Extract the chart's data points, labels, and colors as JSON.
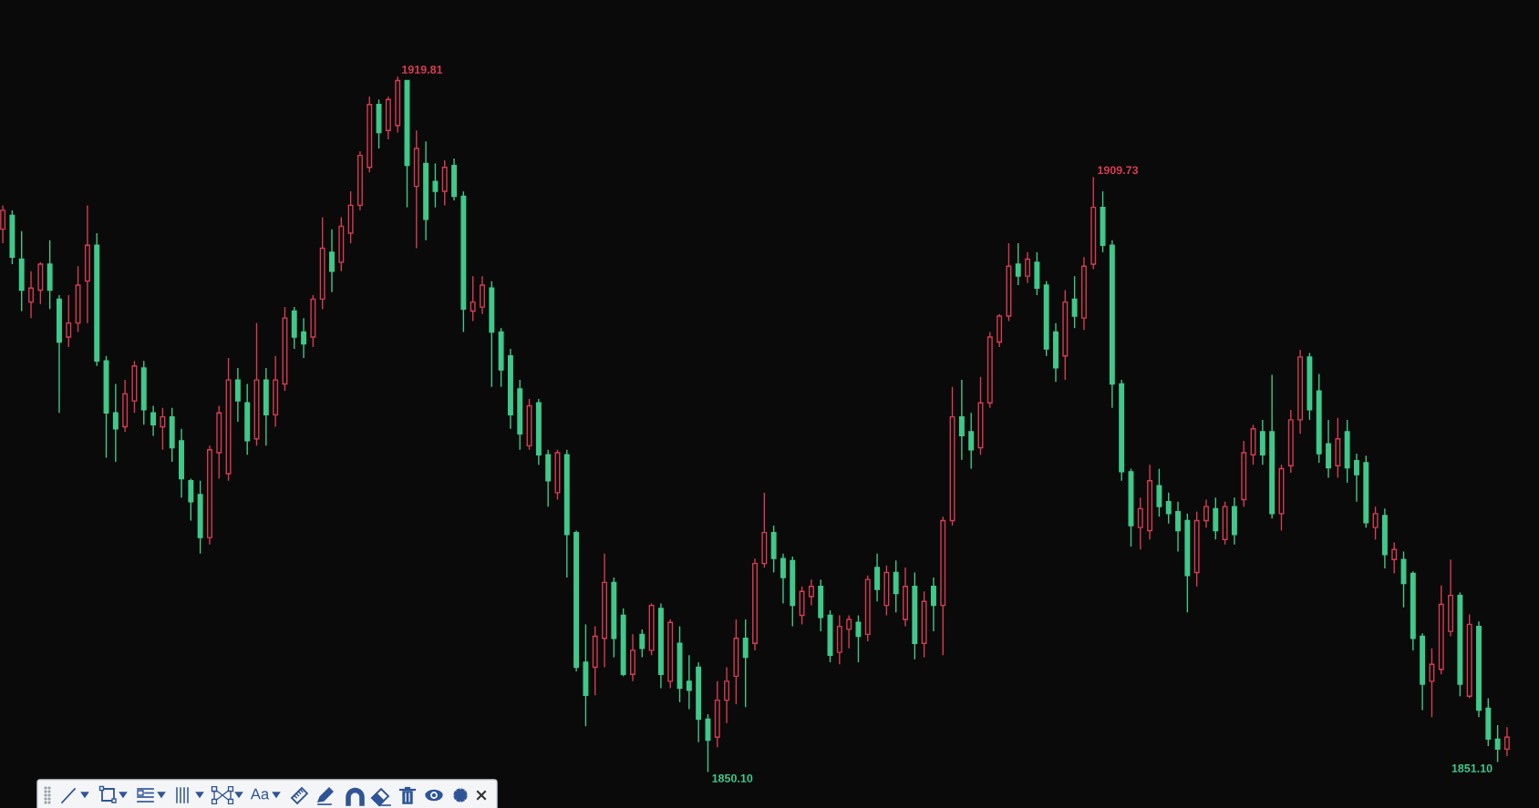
{
  "chart_data": {
    "type": "candlestick",
    "tick_labels": false,
    "categories": [
      null,
      null,
      null,
      null,
      null,
      null,
      null,
      null,
      null,
      null,
      null,
      null,
      null,
      null,
      null,
      null,
      null,
      null,
      null,
      null,
      null,
      null,
      null,
      null,
      null,
      null,
      null,
      null,
      null,
      null,
      null,
      null,
      null,
      null,
      null,
      null,
      null,
      null,
      null,
      null,
      null,
      null,
      null,
      null,
      null,
      null,
      null,
      null,
      null,
      null,
      null,
      null,
      null,
      null,
      null,
      null,
      null,
      null,
      null,
      null,
      null,
      null,
      null,
      null,
      null,
      null,
      null,
      null,
      null,
      null,
      null,
      null,
      null,
      null,
      null,
      null,
      null,
      null,
      null,
      null,
      null,
      null,
      null,
      null,
      null,
      null,
      null,
      null,
      null,
      null,
      null,
      null,
      null,
      null,
      null,
      null,
      null,
      null,
      null,
      null,
      null,
      null,
      null,
      null,
      null,
      null,
      null,
      null,
      null,
      null,
      null,
      null,
      null,
      null,
      null,
      null,
      null,
      null,
      null,
      null,
      null,
      null,
      null,
      null,
      null,
      null,
      null,
      null,
      null,
      null,
      null,
      null,
      null,
      null,
      null,
      null,
      null,
      null,
      null,
      null,
      null,
      null,
      null,
      null,
      null,
      null,
      null,
      null,
      null,
      null,
      null,
      null,
      null,
      null,
      null,
      null,
      null,
      null,
      null,
      null,
      null
    ],
    "ohlc": [
      [
        1904.5,
        1906.9,
        1903.1,
        1906.4
      ],
      [
        1905.9,
        1906.4,
        1901.0,
        1901.7
      ],
      [
        1901.5,
        1904.3,
        1896.3,
        1898.4
      ],
      [
        1897.2,
        1900.3,
        1895.6,
        1898.6
      ],
      [
        1898.4,
        1901.2,
        1897.0,
        1901.0
      ],
      [
        1901.0,
        1903.4,
        1896.5,
        1898.4
      ],
      [
        1897.5,
        1897.9,
        1886.1,
        1893.2
      ],
      [
        1893.7,
        1897.9,
        1892.7,
        1895.1
      ],
      [
        1895.1,
        1900.8,
        1894.2,
        1898.9
      ],
      [
        1899.3,
        1906.9,
        1895.1,
        1902.9
      ],
      [
        1902.9,
        1904.1,
        1890.8,
        1891.3
      ],
      [
        1891.3,
        1891.8,
        1881.6,
        1886.1
      ],
      [
        1886.1,
        1889.0,
        1881.2,
        1884.5
      ],
      [
        1884.7,
        1889.4,
        1884.2,
        1888.0
      ],
      [
        1887.3,
        1891.3,
        1886.1,
        1890.8
      ],
      [
        1890.6,
        1891.3,
        1884.9,
        1886.4
      ],
      [
        1886.1,
        1886.8,
        1883.8,
        1884.9
      ],
      [
        1884.7,
        1886.6,
        1882.4,
        1885.7
      ],
      [
        1885.7,
        1886.6,
        1881.2,
        1882.6
      ],
      [
        1883.3,
        1884.5,
        1877.6,
        1879.5
      ],
      [
        1879.3,
        1879.5,
        1875.3,
        1877.2
      ],
      [
        1877.9,
        1879.3,
        1872.0,
        1873.6
      ],
      [
        1873.6,
        1882.8,
        1872.9,
        1882.4
      ],
      [
        1882.1,
        1886.8,
        1879.5,
        1886.1
      ],
      [
        1880.0,
        1891.6,
        1879.3,
        1889.4
      ],
      [
        1889.4,
        1890.6,
        1885.2,
        1887.3
      ],
      [
        1887.1,
        1889.0,
        1881.9,
        1883.3
      ],
      [
        1883.5,
        1895.1,
        1882.8,
        1889.4
      ],
      [
        1889.4,
        1890.6,
        1882.8,
        1885.9
      ],
      [
        1885.9,
        1891.8,
        1884.7,
        1889.4
      ],
      [
        1889.0,
        1896.7,
        1888.3,
        1895.6
      ],
      [
        1896.3,
        1896.7,
        1892.5,
        1893.7
      ],
      [
        1894.2,
        1895.6,
        1891.6,
        1893.0
      ],
      [
        1893.7,
        1897.9,
        1892.7,
        1897.5
      ],
      [
        1897.5,
        1905.7,
        1896.5,
        1902.6
      ],
      [
        1902.2,
        1904.5,
        1898.2,
        1900.3
      ],
      [
        1901.2,
        1905.7,
        1900.3,
        1904.8
      ],
      [
        1904.1,
        1908.3,
        1903.1,
        1906.9
      ],
      [
        1906.9,
        1912.3,
        1906.4,
        1911.9
      ],
      [
        1910.7,
        1917.8,
        1910.2,
        1917.0
      ],
      [
        1917.0,
        1917.5,
        1912.6,
        1914.2
      ],
      [
        1914.4,
        1917.8,
        1913.5,
        1917.5
      ],
      [
        1914.9,
        1919.81,
        1914.2,
        1919.4
      ],
      [
        1919.4,
        1919.4,
        1906.7,
        1910.9
      ],
      [
        1908.8,
        1914.4,
        1902.6,
        1912.6
      ],
      [
        1911.1,
        1913.3,
        1903.4,
        1905.5
      ],
      [
        1909.3,
        1911.1,
        1906.7,
        1908.3
      ],
      [
        1908.3,
        1911.4,
        1906.9,
        1910.7
      ],
      [
        1910.9,
        1911.6,
        1907.4,
        1907.8
      ],
      [
        1907.8,
        1908.3,
        1894.2,
        1896.5
      ],
      [
        1896.3,
        1899.8,
        1895.3,
        1897.2
      ],
      [
        1896.7,
        1899.8,
        1896.0,
        1898.9
      ],
      [
        1898.6,
        1899.3,
        1888.7,
        1894.2
      ],
      [
        1894.2,
        1894.6,
        1888.7,
        1890.4
      ],
      [
        1891.8,
        1892.5,
        1884.5,
        1885.9
      ],
      [
        1888.5,
        1889.4,
        1882.4,
        1884.0
      ],
      [
        1882.8,
        1887.5,
        1882.4,
        1886.8
      ],
      [
        1887.1,
        1887.5,
        1880.9,
        1881.9
      ],
      [
        1881.9,
        1882.4,
        1876.7,
        1879.3
      ],
      [
        1878.1,
        1882.4,
        1877.4,
        1882.1
      ],
      [
        1881.9,
        1882.4,
        1869.6,
        1873.9
      ],
      [
        1874.1,
        1874.3,
        1860.2,
        1860.6
      ],
      [
        1861.1,
        1864.9,
        1854.7,
        1857.8
      ],
      [
        1860.6,
        1864.7,
        1857.8,
        1863.7
      ],
      [
        1863.5,
        1872.0,
        1860.6,
        1869.1
      ],
      [
        1869.1,
        1869.6,
        1861.6,
        1863.5
      ],
      [
        1865.8,
        1866.5,
        1859.7,
        1859.9
      ],
      [
        1859.9,
        1863.9,
        1859.2,
        1862.3
      ],
      [
        1863.9,
        1864.4,
        1861.6,
        1862.5
      ],
      [
        1862.3,
        1867.0,
        1861.8,
        1866.8
      ],
      [
        1866.5,
        1867.0,
        1858.5,
        1859.9
      ],
      [
        1859.2,
        1865.4,
        1858.5,
        1865.1
      ],
      [
        1863.0,
        1864.7,
        1857.1,
        1858.5
      ],
      [
        1859.2,
        1861.8,
        1856.4,
        1858.3
      ],
      [
        1860.6,
        1861.1,
        1853.1,
        1855.4
      ],
      [
        1855.4,
        1855.9,
        1850.1,
        1853.3
      ],
      [
        1853.6,
        1859.2,
        1852.6,
        1857.3
      ],
      [
        1857.3,
        1860.6,
        1855.0,
        1859.2
      ],
      [
        1859.7,
        1865.4,
        1856.9,
        1863.5
      ],
      [
        1863.5,
        1865.4,
        1856.6,
        1861.6
      ],
      [
        1863.0,
        1871.5,
        1862.3,
        1871.0
      ],
      [
        1871.0,
        1878.1,
        1870.6,
        1874.1
      ],
      [
        1874.1,
        1874.8,
        1870.1,
        1871.5
      ],
      [
        1871.5,
        1872.0,
        1867.0,
        1869.6
      ],
      [
        1871.3,
        1871.7,
        1864.7,
        1866.8
      ],
      [
        1865.8,
        1868.7,
        1864.9,
        1868.2
      ],
      [
        1867.7,
        1869.4,
        1866.8,
        1868.7
      ],
      [
        1868.7,
        1869.4,
        1864.2,
        1865.6
      ],
      [
        1865.8,
        1866.3,
        1861.1,
        1861.8
      ],
      [
        1862.1,
        1865.8,
        1860.9,
        1864.7
      ],
      [
        1864.4,
        1865.8,
        1862.5,
        1865.4
      ],
      [
        1865.1,
        1865.8,
        1861.1,
        1863.7
      ],
      [
        1863.9,
        1869.8,
        1863.2,
        1869.4
      ],
      [
        1870.6,
        1872.0,
        1867.2,
        1868.4
      ],
      [
        1866.8,
        1870.8,
        1865.8,
        1870.1
      ],
      [
        1870.1,
        1871.3,
        1866.1,
        1868.0
      ],
      [
        1865.4,
        1870.6,
        1864.7,
        1868.7
      ],
      [
        1868.7,
        1870.1,
        1861.4,
        1863.0
      ],
      [
        1863.0,
        1868.2,
        1861.6,
        1867.2
      ],
      [
        1868.7,
        1869.6,
        1864.2,
        1866.8
      ],
      [
        1866.8,
        1875.7,
        1861.8,
        1875.3
      ],
      [
        1875.3,
        1888.7,
        1874.8,
        1885.7
      ],
      [
        1885.7,
        1889.4,
        1881.4,
        1883.8
      ],
      [
        1884.2,
        1886.1,
        1880.5,
        1882.4
      ],
      [
        1882.6,
        1889.7,
        1881.9,
        1887.1
      ],
      [
        1887.1,
        1894.2,
        1886.6,
        1893.7
      ],
      [
        1893.2,
        1896.0,
        1892.7,
        1895.8
      ],
      [
        1895.8,
        1903.1,
        1895.3,
        1900.8
      ],
      [
        1901.0,
        1903.1,
        1898.9,
        1899.8
      ],
      [
        1899.8,
        1902.2,
        1899.1,
        1901.5
      ],
      [
        1901.2,
        1902.2,
        1897.9,
        1898.6
      ],
      [
        1898.9,
        1899.3,
        1891.8,
        1892.5
      ],
      [
        1894.2,
        1895.1,
        1889.2,
        1890.6
      ],
      [
        1891.8,
        1898.4,
        1889.4,
        1897.2
      ],
      [
        1897.5,
        1899.8,
        1894.6,
        1895.8
      ],
      [
        1895.6,
        1901.7,
        1894.4,
        1900.8
      ],
      [
        1901.0,
        1909.73,
        1900.5,
        1906.7
      ],
      [
        1906.7,
        1908.3,
        1902.2,
        1902.9
      ],
      [
        1902.9,
        1903.4,
        1886.6,
        1889.0
      ],
      [
        1889.0,
        1889.4,
        1879.3,
        1880.2
      ],
      [
        1880.2,
        1880.5,
        1872.7,
        1874.8
      ],
      [
        1874.6,
        1877.6,
        1872.4,
        1876.5
      ],
      [
        1874.3,
        1880.9,
        1873.4,
        1879.3
      ],
      [
        1878.8,
        1880.5,
        1875.7,
        1876.7
      ],
      [
        1877.2,
        1878.1,
        1875.0,
        1876.0
      ],
      [
        1876.2,
        1877.2,
        1872.2,
        1874.3
      ],
      [
        1875.3,
        1876.0,
        1866.1,
        1869.8
      ],
      [
        1870.1,
        1876.2,
        1868.7,
        1875.3
      ],
      [
        1875.3,
        1877.4,
        1874.6,
        1876.7
      ],
      [
        1876.5,
        1877.6,
        1873.4,
        1874.3
      ],
      [
        1873.4,
        1877.2,
        1872.9,
        1876.7
      ],
      [
        1876.7,
        1877.6,
        1872.9,
        1873.9
      ],
      [
        1877.4,
        1883.3,
        1876.7,
        1882.1
      ],
      [
        1881.9,
        1884.9,
        1880.9,
        1884.5
      ],
      [
        1884.2,
        1885.4,
        1880.9,
        1881.9
      ],
      [
        1884.2,
        1889.9,
        1875.5,
        1876.0
      ],
      [
        1876.0,
        1880.9,
        1874.3,
        1880.5
      ],
      [
        1880.8,
        1886.4,
        1880.1,
        1885.4
      ],
      [
        1885.4,
        1892.4,
        1884.0,
        1891.7
      ],
      [
        1891.7,
        1892.1,
        1885.4,
        1886.4
      ],
      [
        1888.3,
        1890.0,
        1881.1,
        1882.0
      ],
      [
        1883.0,
        1885.4,
        1879.6,
        1880.6
      ],
      [
        1880.8,
        1885.6,
        1879.6,
        1883.5
      ],
      [
        1884.2,
        1885.4,
        1879.1,
        1880.6
      ],
      [
        1881.3,
        1882.0,
        1877.2,
        1879.9
      ],
      [
        1881.1,
        1881.8,
        1874.6,
        1875.1
      ],
      [
        1874.6,
        1876.7,
        1873.4,
        1876.0
      ],
      [
        1875.8,
        1876.5,
        1870.5,
        1871.9
      ],
      [
        1871.4,
        1873.1,
        1870.0,
        1872.4
      ],
      [
        1871.4,
        1872.2,
        1866.6,
        1869.0
      ],
      [
        1870.0,
        1870.2,
        1862.3,
        1863.5
      ],
      [
        1863.7,
        1864.0,
        1856.3,
        1858.9
      ],
      [
        1859.2,
        1862.5,
        1855.6,
        1860.9
      ],
      [
        1860.4,
        1868.8,
        1859.9,
        1866.9
      ],
      [
        1864.2,
        1871.4,
        1863.7,
        1867.8
      ],
      [
        1867.8,
        1868.1,
        1857.7,
        1858.9
      ],
      [
        1857.7,
        1865.9,
        1857.5,
        1864.9
      ],
      [
        1864.7,
        1865.2,
        1855.6,
        1856.3
      ],
      [
        1856.5,
        1857.5,
        1852.7,
        1853.4
      ],
      [
        1853.4,
        1854.8,
        1851.1,
        1852.4
      ],
      [
        1852.4,
        1854.6,
        1851.7,
        1853.6
      ]
    ],
    "colors": [
      "#d83c52",
      "#3fc98b",
      "#3fc98b",
      "#d83c52",
      "#d83c52",
      "#3fc98b",
      "#3fc98b",
      "#d83c52",
      "#d83c52",
      "#d83c52",
      "#3fc98b",
      "#3fc98b",
      "#3fc98b",
      "#d83c52",
      "#d83c52",
      "#3fc98b",
      "#3fc98b",
      "#d83c52",
      "#3fc98b",
      "#3fc98b",
      "#3fc98b",
      "#3fc98b",
      "#d83c52",
      "#d83c52",
      "#d83c52",
      "#3fc98b",
      "#3fc98b",
      "#d83c52",
      "#3fc98b",
      "#d83c52",
      "#d83c52",
      "#3fc98b",
      "#3fc98b",
      "#d83c52",
      "#d83c52",
      "#3fc98b",
      "#d83c52",
      "#d83c52",
      "#d83c52",
      "#d83c52",
      "#3fc98b",
      "#d83c52",
      "#d83c52",
      "#3fc98b",
      "#d83c52",
      "#3fc98b",
      "#3fc98b",
      "#d83c52",
      "#3fc98b",
      "#3fc98b",
      "#d83c52",
      "#d83c52",
      "#3fc98b",
      "#3fc98b",
      "#3fc98b",
      "#3fc98b",
      "#d83c52",
      "#3fc98b",
      "#3fc98b",
      "#d83c52",
      "#3fc98b",
      "#3fc98b",
      "#3fc98b",
      "#d83c52",
      "#d83c52",
      "#3fc98b",
      "#3fc98b",
      "#d83c52",
      "#3fc98b",
      "#d83c52",
      "#3fc98b",
      "#d83c52",
      "#3fc98b",
      "#3fc98b",
      "#3fc98b",
      "#3fc98b",
      "#d83c52",
      "#d83c52",
      "#d83c52",
      "#3fc98b",
      "#d83c52",
      "#d83c52",
      "#3fc98b",
      "#3fc98b",
      "#3fc98b",
      "#d83c52",
      "#d83c52",
      "#3fc98b",
      "#3fc98b",
      "#d83c52",
      "#d83c52",
      "#3fc98b",
      "#d83c52",
      "#3fc98b",
      "#d83c52",
      "#3fc98b",
      "#d83c52",
      "#3fc98b",
      "#d83c52",
      "#3fc98b",
      "#d83c52",
      "#d83c52",
      "#3fc98b",
      "#3fc98b",
      "#d83c52",
      "#d83c52",
      "#d83c52",
      "#d83c52",
      "#3fc98b",
      "#d83c52",
      "#3fc98b",
      "#3fc98b",
      "#3fc98b",
      "#d83c52",
      "#3fc98b",
      "#d83c52",
      "#d83c52",
      "#3fc98b",
      "#3fc98b",
      "#3fc98b",
      "#3fc98b",
      "#d83c52",
      "#d83c52",
      "#3fc98b",
      "#3fc98b",
      "#3fc98b",
      "#3fc98b",
      "#d83c52",
      "#d83c52",
      "#3fc98b",
      "#d83c52",
      "#3fc98b",
      "#d83c52",
      "#d83c52",
      "#3fc98b",
      "#3fc98b",
      "#d83c52",
      "#d83c52",
      "#d83c52",
      "#3fc98b",
      "#3fc98b",
      "#3fc98b",
      "#d83c52",
      "#3fc98b",
      "#3fc98b",
      "#3fc98b",
      "#d83c52",
      "#3fc98b",
      "#d83c52",
      "#3fc98b",
      "#3fc98b",
      "#3fc98b",
      "#d83c52",
      "#d83c52",
      "#d83c52",
      "#3fc98b",
      "#d83c52",
      "#3fc98b",
      "#3fc98b",
      "#3fc98b",
      "#d83c52"
    ],
    "annotations": [
      "1919.81",
      "1909.73",
      "1850.10",
      "1851.10",
      "Aa"
    ]
  }
}
